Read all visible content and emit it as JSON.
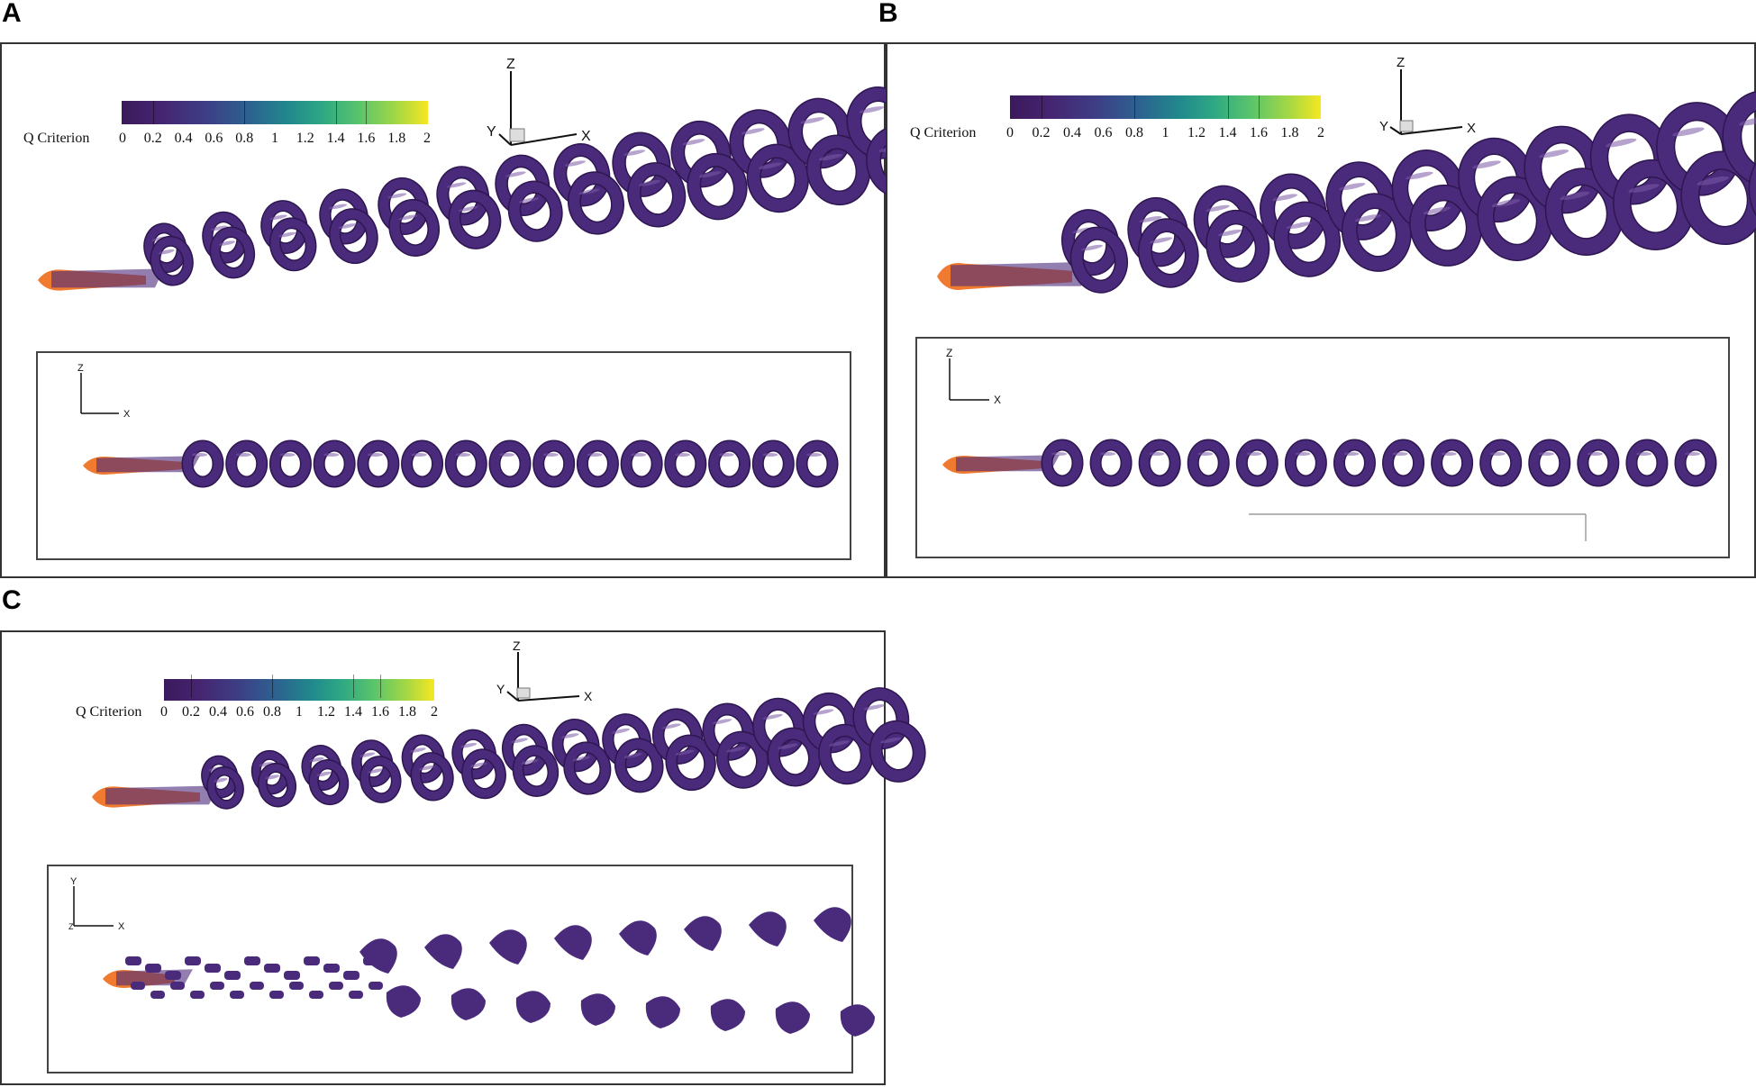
{
  "panels": [
    {
      "letter": "A",
      "colorbar": {
        "label": "Q Criterion",
        "ticks": [
          "0",
          "0.2",
          "0.4",
          "0.6",
          "0.8",
          "1",
          "1.2",
          "1.4",
          "1.6",
          "1.8",
          "2"
        ]
      },
      "triad": {
        "z": "Z",
        "y": "Y",
        "x": "X"
      },
      "inset_axes": {
        "v": "Z",
        "h": "X"
      }
    },
    {
      "letter": "B",
      "colorbar": {
        "label": "Q Criterion",
        "ticks": [
          "0",
          "0.2",
          "0.4",
          "0.6",
          "0.8",
          "1",
          "1.2",
          "1.4",
          "1.6",
          "1.8",
          "2"
        ]
      },
      "triad": {
        "z": "Z",
        "y": "Y",
        "x": "X"
      },
      "inset_axes": {
        "v": "Z",
        "h": "X"
      }
    },
    {
      "letter": "C",
      "colorbar": {
        "label": "Q Criterion",
        "ticks": [
          "0",
          "0.2",
          "0.4",
          "0.6",
          "0.8",
          "1",
          "1.2",
          "1.4",
          "1.6",
          "1.8",
          "2"
        ]
      },
      "triad": {
        "z": "Z",
        "y": "Y",
        "x": "X"
      },
      "inset_axes": {
        "v": "Y",
        "h": "X",
        "o": "Z"
      }
    }
  ],
  "colors": {
    "vortex": "#4a2a7a",
    "vortex_dark": "#2e1650",
    "body": "#f07a30"
  }
}
